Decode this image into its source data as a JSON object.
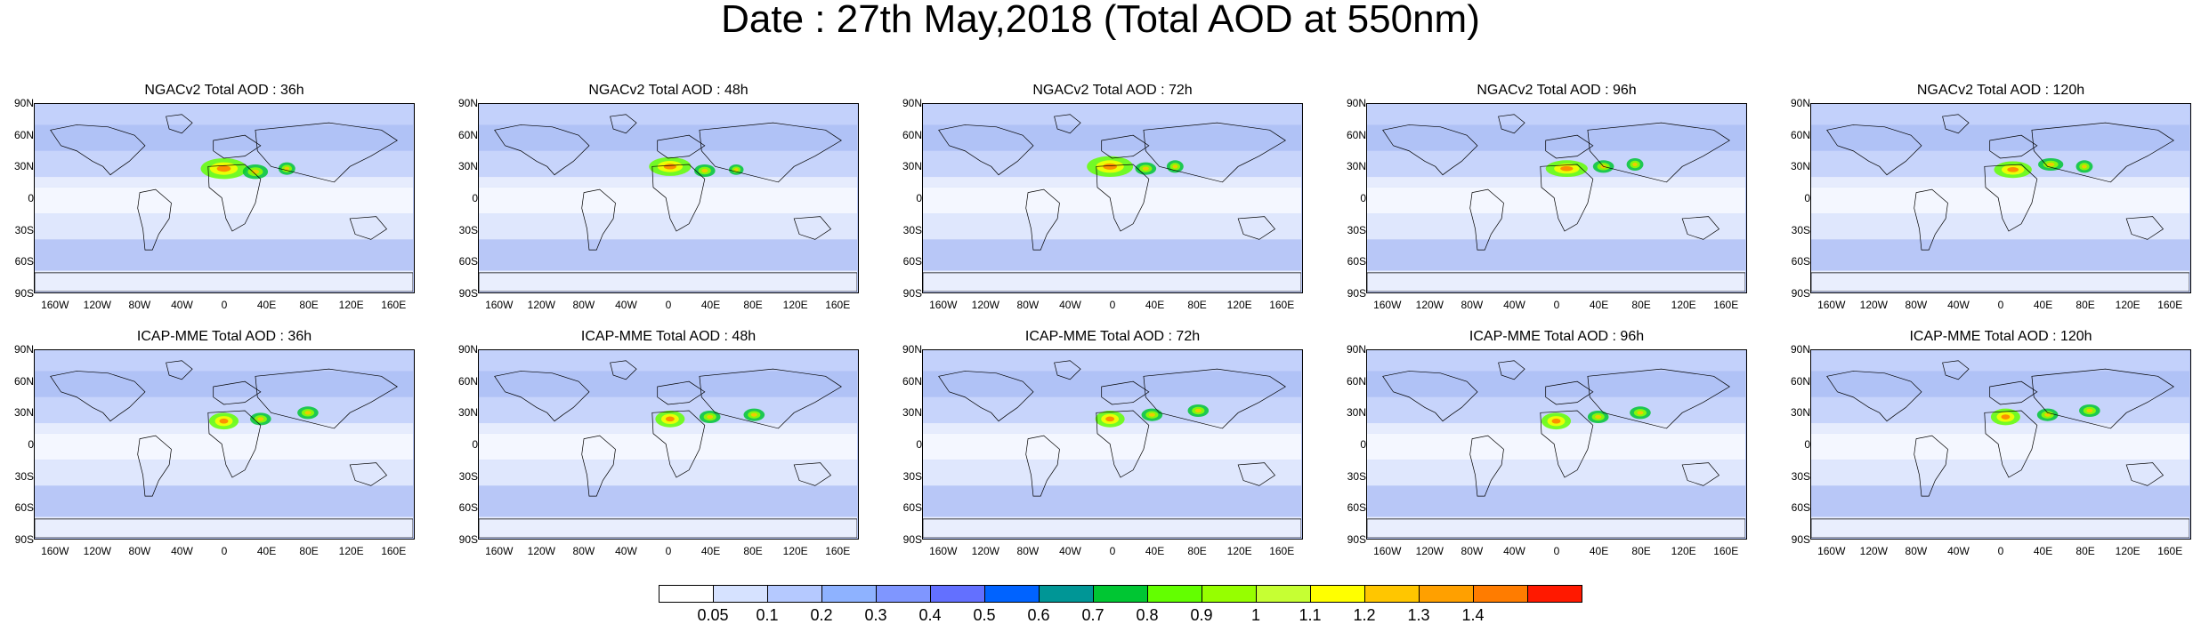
{
  "title": "Date : 27th May,2018 (Total AOD at 550nm)",
  "panels": [
    {
      "title": "NGACv2 Total AOD : 36h"
    },
    {
      "title": "NGACv2 Total AOD : 48h"
    },
    {
      "title": "NGACv2 Total AOD : 72h"
    },
    {
      "title": "NGACv2 Total AOD : 96h"
    },
    {
      "title": "NGACv2 Total AOD : 120h"
    },
    {
      "title": "ICAP-MME Total AOD : 36h"
    },
    {
      "title": "ICAP-MME Total AOD : 48h"
    },
    {
      "title": "ICAP-MME Total AOD : 72h"
    },
    {
      "title": "ICAP-MME Total AOD : 96h"
    },
    {
      "title": "ICAP-MME Total AOD : 120h"
    }
  ],
  "lat_labels": [
    "90N",
    "60N",
    "30N",
    "0",
    "30S",
    "60S",
    "90S"
  ],
  "lon_labels": [
    "160W",
    "120W",
    "80W",
    "40W",
    "0",
    "40E",
    "80E",
    "120E",
    "160E"
  ],
  "colorbar": {
    "labels": [
      "0.05",
      "0.1",
      "0.2",
      "0.3",
      "0.4",
      "0.5",
      "0.6",
      "0.7",
      "0.8",
      "0.9",
      "1",
      "1.1",
      "1.2",
      "1.3",
      "1.4"
    ],
    "colors": [
      "#ffffff",
      "#d6e2ff",
      "#b5c9ff",
      "#8eb2ff",
      "#7f96ff",
      "#6370ff",
      "#0063ff",
      "#009696",
      "#00c633",
      "#63ff00",
      "#96ff00",
      "#c6ff33",
      "#ffff00",
      "#ffc600",
      "#ffa000",
      "#ff7c00",
      "#ff1900"
    ]
  }
}
